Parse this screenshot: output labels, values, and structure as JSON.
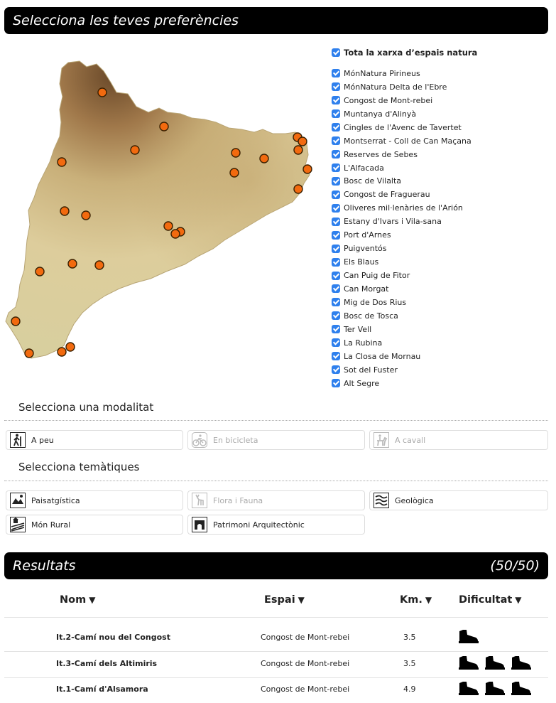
{
  "preferences": {
    "title": "Selecciona les teves preferències"
  },
  "zones": {
    "all_label": "Tota la xarxa d’espais natura",
    "items": [
      "MónNatura Pirineus",
      "MónNatura Delta de l'Ebre",
      "Congost de Mont-rebei",
      "Muntanya d'Alinyà",
      "Cingles de l'Avenc de Tavertet",
      "Montserrat - Coll de Can Maçana",
      "Reserves de Sebes",
      "L'Alfacada",
      "Bosc de Vilalta",
      "Congost de Fraguerau",
      "Oliveres mil·lenàries de l'Arión",
      "Estany d'Ivars i Vila-sana",
      "Port d'Arnes",
      "Puigventós",
      "Els Blaus",
      "Can Puig de Fitor",
      "Can Morgat",
      "Mig de Dos Rius",
      "Bosc de Tosca",
      "Ter Vell",
      "La Rubina",
      "La Closa de Mornau",
      "Sot del Fuster",
      "Alt Segre"
    ]
  },
  "modality": {
    "title": "Selecciona una modalitat",
    "options": [
      {
        "label": "A peu",
        "enabled": true,
        "icon": "hiker-icon"
      },
      {
        "label": "En bicicleta",
        "enabled": false,
        "icon": "bicycle-icon"
      },
      {
        "label": "A cavall",
        "enabled": false,
        "icon": "horse-icon"
      }
    ]
  },
  "themes": {
    "title": "Selecciona temàtiques",
    "options": [
      {
        "label": "Paisatgística",
        "enabled": true,
        "icon": "landscape-icon"
      },
      {
        "label": "Flora i Fauna",
        "enabled": false,
        "icon": "deer-icon"
      },
      {
        "label": "Geològica",
        "enabled": true,
        "icon": "rock-layers-icon"
      },
      {
        "label": "Món Rural",
        "enabled": true,
        "icon": "field-icon"
      },
      {
        "label": "Patrimoni Arquitectònic",
        "enabled": true,
        "icon": "arch-icon"
      }
    ]
  },
  "results": {
    "title": "Resultats",
    "count": "(50/50)",
    "columns": {
      "name": "Nom",
      "space": "Espai",
      "km": "Km.",
      "difficulty": "Dificultat"
    },
    "sort_glyph": "▼",
    "rows": [
      {
        "name": "It.2-Camí nou del Congost",
        "space": "Congost de Mont-rebei",
        "km": "3.5",
        "difficulty": 1
      },
      {
        "name": "It.3-Camí dels Altimiris",
        "space": "Congost de Mont-rebei",
        "km": "3.5",
        "difficulty": 3
      },
      {
        "name": "It.1-Camí d'Alsamora",
        "space": "Congost de Mont-rebei",
        "km": "4.9",
        "difficulty": 3
      }
    ]
  },
  "colors": {
    "marker": "#f26a0f",
    "checkbox": "#2f80ed",
    "bar": "#000000"
  }
}
